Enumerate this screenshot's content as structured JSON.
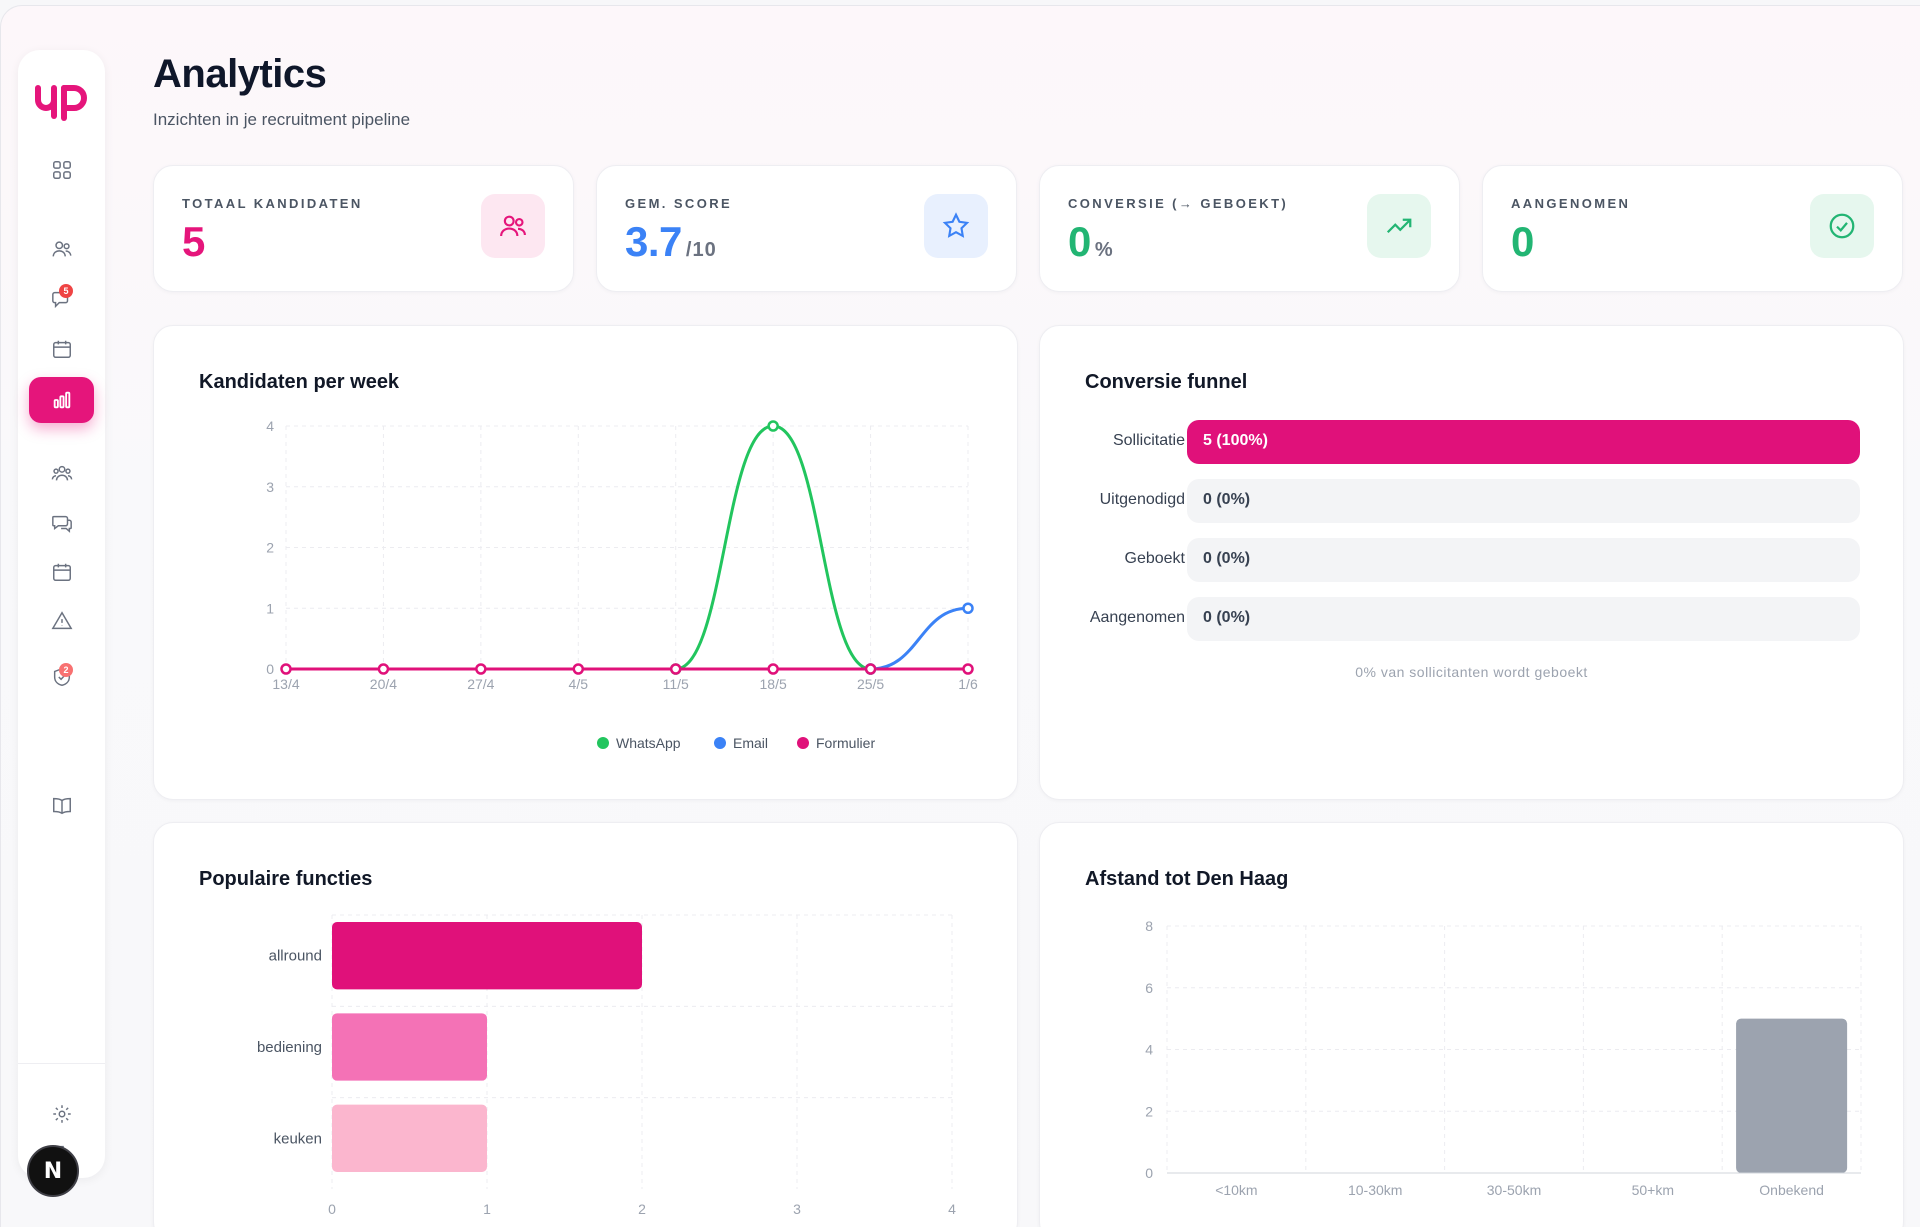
{
  "sidebar": {
    "logo_alt": "yp",
    "nav_icons": [
      "dashboard-icon",
      "candidates-icon",
      "messages-icon",
      "calendar-icon",
      "analytics-icon",
      "team-icon",
      "chat-icon",
      "schedule-icon",
      "alert-icon",
      "verified-icon",
      "book-icon",
      "settings-icon"
    ],
    "messages_badge": "5",
    "verified_badge": "2",
    "bottom_bubble": "N"
  },
  "header": {
    "title": "Analytics",
    "subtitle": "Inzichten in je recruitment pipeline"
  },
  "stats": [
    {
      "label": "TOTAAL KANDIDATEN",
      "value": "5",
      "unit": "",
      "color": "#e5157b",
      "icon": "users-icon"
    },
    {
      "label": "GEM. SCORE",
      "value": "3.7",
      "unit": "/10",
      "color": "#3b82f6",
      "icon": "star-icon"
    },
    {
      "label": "CONVERSIE (→ GEBOEKT)",
      "value": "0",
      "unit": "%",
      "color": "#22b573",
      "icon": "trending-up-icon"
    },
    {
      "label": "AANGENOMEN",
      "value": "0",
      "unit": "",
      "color": "#22b573",
      "icon": "check-circle-icon"
    }
  ],
  "panels": {
    "weekly": {
      "title": "Kandidaten per week"
    },
    "funnel": {
      "title": "Conversie funnel",
      "rows": [
        {
          "label": "Sollicitatie",
          "text": "5 (100%)",
          "fraction": 1.0
        },
        {
          "label": "Uitgenodigd",
          "text": "0 (0%)",
          "fraction": 0
        },
        {
          "label": "Geboekt",
          "text": "0 (0%)",
          "fraction": 0
        },
        {
          "label": "Aangenomen",
          "text": "0 (0%)",
          "fraction": 0
        }
      ],
      "note": "0% van sollicitanten wordt geboekt"
    },
    "functions": {
      "title": "Populaire functies"
    },
    "distance": {
      "title": "Afstand tot Den Haag"
    }
  },
  "chart_data": [
    {
      "type": "line",
      "title": "Kandidaten per week",
      "x": [
        "13/4",
        "20/4",
        "27/4",
        "4/5",
        "11/5",
        "18/5",
        "25/5",
        "1/6"
      ],
      "ylim": [
        0,
        4
      ],
      "yticks": [
        0,
        1,
        2,
        3,
        4
      ],
      "grid": true,
      "legend": "bottom",
      "series": [
        {
          "name": "WhatsApp",
          "color": "#22c55e",
          "values": [
            0,
            0,
            0,
            0,
            0,
            4,
            0,
            0
          ],
          "markers": [
            4,
            5,
            6
          ]
        },
        {
          "name": "Email",
          "color": "#3b82f6",
          "values": [
            0,
            0,
            0,
            0,
            0,
            0,
            0,
            1
          ],
          "markers": [
            6,
            7
          ]
        },
        {
          "name": "Formulier",
          "color": "#e0117a",
          "values": [
            0,
            0,
            0,
            0,
            0,
            0,
            0,
            0
          ],
          "markers": [
            0,
            1,
            2,
            3,
            4,
            5,
            6,
            7
          ]
        }
      ]
    },
    {
      "type": "bar",
      "orientation": "horizontal",
      "title": "Populaire functies",
      "categories": [
        "allround",
        "bediening",
        "keuken"
      ],
      "values": [
        2,
        1,
        1
      ],
      "colors": [
        "#e0117a",
        "#f472b6",
        "#fbb6ce"
      ],
      "xlim": [
        0,
        4
      ],
      "xticks": [
        0,
        1,
        2,
        3,
        4
      ],
      "grid": true
    },
    {
      "type": "bar",
      "title": "Afstand tot Den Haag",
      "categories": [
        "<10km",
        "10-30km",
        "30-50km",
        "50+km",
        "Onbekend"
      ],
      "values": [
        0,
        0,
        0,
        0,
        5
      ],
      "color": "#9ca3af",
      "ylim": [
        0,
        8
      ],
      "yticks": [
        0,
        2,
        4,
        6,
        8
      ],
      "grid": true
    }
  ]
}
